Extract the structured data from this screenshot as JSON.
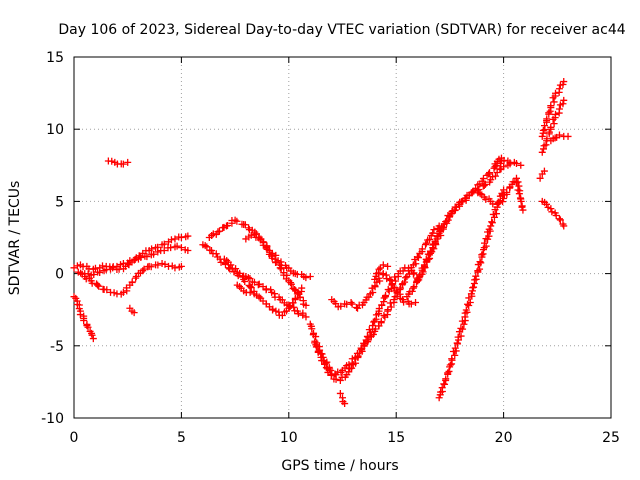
{
  "chart_data": {
    "type": "scatter",
    "title": "Day 106 of 2023, Sidereal Day-to-day VTEC variation (SDTVAR) for receiver ac44",
    "xlabel": "GPS time / hours",
    "ylabel": "SDTVAR / TECUs",
    "xlim": [
      0,
      25
    ],
    "ylim": [
      -10,
      15
    ],
    "x_ticks": [
      "0",
      "5",
      "10",
      "15",
      "20",
      "25"
    ],
    "y_ticks": [
      "-10",
      "-5",
      "0",
      "5",
      "10",
      "15"
    ],
    "grid": true,
    "marker": "plus",
    "color": "#ff0000",
    "series": [
      {
        "name": "trace-1",
        "x": [
          0.0,
          0.3,
          0.6,
          0.9,
          1.2,
          1.5,
          1.8,
          2.1,
          2.4,
          2.7,
          3.0,
          3.3,
          3.6,
          3.9,
          4.2,
          4.5,
          4.8,
          5.0,
          5.3
        ],
        "y": [
          0.4,
          0.6,
          0.5,
          0.3,
          0.4,
          0.5,
          0.4,
          0.3,
          0.5,
          0.8,
          1.0,
          1.2,
          1.3,
          1.5,
          1.6,
          1.8,
          1.9,
          1.8,
          1.6
        ]
      },
      {
        "name": "trace-2",
        "x": [
          0.2,
          0.5,
          0.8,
          1.1,
          1.4,
          1.7,
          2.0,
          2.3,
          2.6,
          2.9,
          3.2,
          3.5,
          3.8,
          4.1,
          4.4,
          4.7,
          5.0
        ],
        "y": [
          0.1,
          -0.2,
          -0.5,
          -0.8,
          -1.1,
          -1.3,
          -1.4,
          -1.3,
          -0.8,
          -0.2,
          0.2,
          0.5,
          0.6,
          0.7,
          0.5,
          0.4,
          0.5
        ]
      },
      {
        "name": "trace-3",
        "x": [
          0.5,
          0.8,
          1.1,
          1.4,
          1.7,
          2.0,
          2.3,
          2.6,
          2.9,
          3.2,
          3.5,
          3.8,
          4.1,
          4.4,
          4.7,
          5.0,
          5.3
        ],
        "y": [
          0.0,
          -0.1,
          0.1,
          0.2,
          0.3,
          0.5,
          0.7,
          0.9,
          1.1,
          1.4,
          1.6,
          1.8,
          2.0,
          2.2,
          2.4,
          2.5,
          2.6
        ]
      },
      {
        "name": "trace-4",
        "x": [
          0.0,
          0.15,
          0.3,
          0.45,
          0.6,
          0.75,
          0.9
        ],
        "y": [
          -1.6,
          -1.9,
          -2.6,
          -3.1,
          -3.6,
          -4.0,
          -4.5
        ]
      },
      {
        "name": "trace-5",
        "x": [
          1.6,
          1.9,
          2.2,
          2.5
        ],
        "y": [
          7.8,
          7.7,
          7.6,
          7.7
        ]
      },
      {
        "name": "trace-6",
        "x": [
          2.6,
          2.7,
          2.8
        ],
        "y": [
          -2.4,
          -2.6,
          -2.7
        ]
      },
      {
        "name": "trace-7",
        "x": [
          6.0,
          6.4,
          6.8,
          7.2,
          7.6,
          8.0,
          8.4,
          8.8,
          9.2,
          9.6,
          10.0,
          10.4,
          10.8
        ],
        "y": [
          2.0,
          1.6,
          1.0,
          0.4,
          0.0,
          -0.2,
          -0.6,
          -0.9,
          -1.3,
          -1.8,
          -2.2,
          -2.6,
          -3.0
        ]
      },
      {
        "name": "trace-8",
        "x": [
          6.3,
          6.7,
          7.1,
          7.5,
          7.9,
          8.3,
          8.7,
          9.1,
          9.5,
          9.9,
          10.3,
          10.7,
          11.0
        ],
        "y": [
          2.5,
          2.9,
          3.3,
          3.7,
          3.4,
          3.0,
          2.4,
          1.6,
          0.9,
          0.4,
          0.0,
          -0.2,
          -0.2
        ]
      },
      {
        "name": "trace-9",
        "x": [
          7.0,
          7.3,
          7.6,
          7.9,
          8.2,
          8.5,
          8.8,
          9.1,
          9.4,
          9.7,
          10.0,
          10.3,
          10.6
        ],
        "y": [
          1.0,
          0.6,
          0.1,
          -0.4,
          -0.9,
          -1.5,
          -1.9,
          -2.3,
          -2.6,
          -2.9,
          -2.4,
          -1.8,
          -1.0
        ]
      },
      {
        "name": "trace-10",
        "x": [
          8.0,
          8.4,
          8.8,
          9.2,
          9.6,
          10.0,
          10.4,
          10.8
        ],
        "y": [
          2.4,
          2.7,
          2.2,
          1.2,
          0.4,
          -0.5,
          -1.4,
          -2.2
        ]
      },
      {
        "name": "trace-11",
        "x": [
          7.6,
          7.9,
          8.2
        ],
        "y": [
          -0.8,
          -1.2,
          -1.3
        ]
      },
      {
        "name": "trace-12",
        "x": [
          11.0,
          11.3,
          11.6,
          11.9,
          12.2,
          12.5,
          12.8,
          13.1,
          13.4,
          13.7,
          14.0,
          14.3,
          14.6,
          14.9,
          15.2,
          15.5,
          15.8,
          16.1,
          16.4,
          16.7,
          17.0
        ],
        "y": [
          -3.5,
          -4.8,
          -5.8,
          -6.6,
          -7.0,
          -6.7,
          -6.3,
          -5.8,
          -5.2,
          -4.6,
          -4.0,
          -3.4,
          -2.6,
          -1.8,
          -1.0,
          -0.2,
          0.6,
          1.4,
          2.1,
          2.8,
          3.3
        ]
      },
      {
        "name": "trace-13",
        "x": [
          11.2,
          11.5,
          11.8,
          12.1,
          12.4,
          12.7,
          13.0,
          13.3,
          13.6,
          13.9,
          14.2,
          14.5,
          14.8,
          15.1,
          15.4,
          15.7,
          16.0
        ],
        "y": [
          -4.8,
          -5.8,
          -6.6,
          -7.3,
          -7.4,
          -7.0,
          -6.3,
          -5.5,
          -4.6,
          -3.6,
          -2.6,
          -1.6,
          -0.8,
          0.0,
          0.4,
          0.2,
          -0.4
        ]
      },
      {
        "name": "trace-14",
        "x": [
          12.4,
          12.5,
          12.6
        ],
        "y": [
          -8.3,
          -8.6,
          -9.0
        ]
      },
      {
        "name": "trace-15",
        "x": [
          12.0,
          12.3,
          12.6,
          12.9,
          13.2,
          13.5,
          13.8,
          14.1,
          14.4,
          14.7,
          15.0,
          15.3,
          15.6,
          15.9
        ],
        "y": [
          -1.8,
          -2.3,
          -2.1,
          -2.0,
          -2.4,
          -2.0,
          -1.4,
          -0.6,
          0.0,
          -0.4,
          -1.2,
          -1.8,
          -2.1,
          -2.0
        ]
      },
      {
        "name": "trace-16",
        "x": [
          14.0,
          14.2,
          14.4,
          14.6
        ],
        "y": [
          -0.4,
          0.3,
          0.6,
          0.5
        ]
      },
      {
        "name": "trace-17",
        "x": [
          15.5,
          15.8,
          16.1,
          16.4,
          16.7,
          17.0,
          17.3,
          17.6,
          17.9,
          18.2,
          18.5,
          18.8,
          19.1,
          19.4,
          19.7,
          20.0,
          20.3
        ],
        "y": [
          -1.6,
          -1.0,
          -0.2,
          0.8,
          1.8,
          2.8,
          3.6,
          4.3,
          4.8,
          5.2,
          5.6,
          5.8,
          6.1,
          6.5,
          7.0,
          7.4,
          7.6
        ]
      },
      {
        "name": "trace-18",
        "x": [
          16.0,
          16.3,
          16.6,
          16.9,
          17.2,
          17.5,
          17.8,
          18.1,
          18.4,
          18.7,
          19.0,
          19.3,
          19.6,
          19.9
        ],
        "y": [
          -0.5,
          0.4,
          1.4,
          2.4,
          3.2,
          4.0,
          4.6,
          5.0,
          5.4,
          5.9,
          6.4,
          6.9,
          7.4,
          7.8
        ]
      },
      {
        "name": "trace-19",
        "x": [
          17.0,
          17.3,
          17.6,
          17.9,
          18.2,
          18.5,
          18.8,
          19.1,
          19.4,
          19.7,
          20.0
        ],
        "y": [
          -8.6,
          -7.4,
          -6.0,
          -4.6,
          -3.0,
          -1.4,
          0.2,
          1.8,
          3.3,
          4.6,
          5.8
        ]
      },
      {
        "name": "trace-20",
        "x": [
          18.8,
          19.1,
          19.4,
          19.7,
          20.0,
          20.3,
          20.6,
          20.9
        ],
        "y": [
          5.6,
          5.3,
          5.0,
          4.8,
          5.2,
          6.0,
          6.6,
          4.4
        ]
      },
      {
        "name": "trace-21",
        "x": [
          19.6,
          19.9,
          20.2,
          20.5,
          20.8
        ],
        "y": [
          7.6,
          8.0,
          7.8,
          7.7,
          7.5
        ]
      },
      {
        "name": "trace-22",
        "x": [
          21.8,
          22.0,
          22.2,
          22.4,
          22.6,
          22.8
        ],
        "y": [
          9.5,
          10.6,
          11.5,
          12.3,
          12.8,
          13.3
        ]
      },
      {
        "name": "trace-23",
        "x": [
          21.8,
          22.0,
          22.2,
          22.4,
          22.6,
          22.8
        ],
        "y": [
          8.4,
          9.2,
          10.0,
          10.8,
          11.4,
          12.0
        ]
      },
      {
        "name": "trace-24",
        "x": [
          22.2,
          22.4,
          22.6,
          22.8,
          23.0
        ],
        "y": [
          9.2,
          9.4,
          9.6,
          9.5,
          9.5
        ]
      },
      {
        "name": "trace-25",
        "x": [
          21.8,
          22.0,
          22.2,
          22.4,
          22.6,
          22.8
        ],
        "y": [
          5.0,
          4.8,
          4.5,
          4.2,
          3.8,
          3.3
        ]
      },
      {
        "name": "trace-26",
        "x": [
          21.7,
          21.8,
          21.9
        ],
        "y": [
          6.6,
          6.9,
          7.1
        ]
      }
    ]
  }
}
